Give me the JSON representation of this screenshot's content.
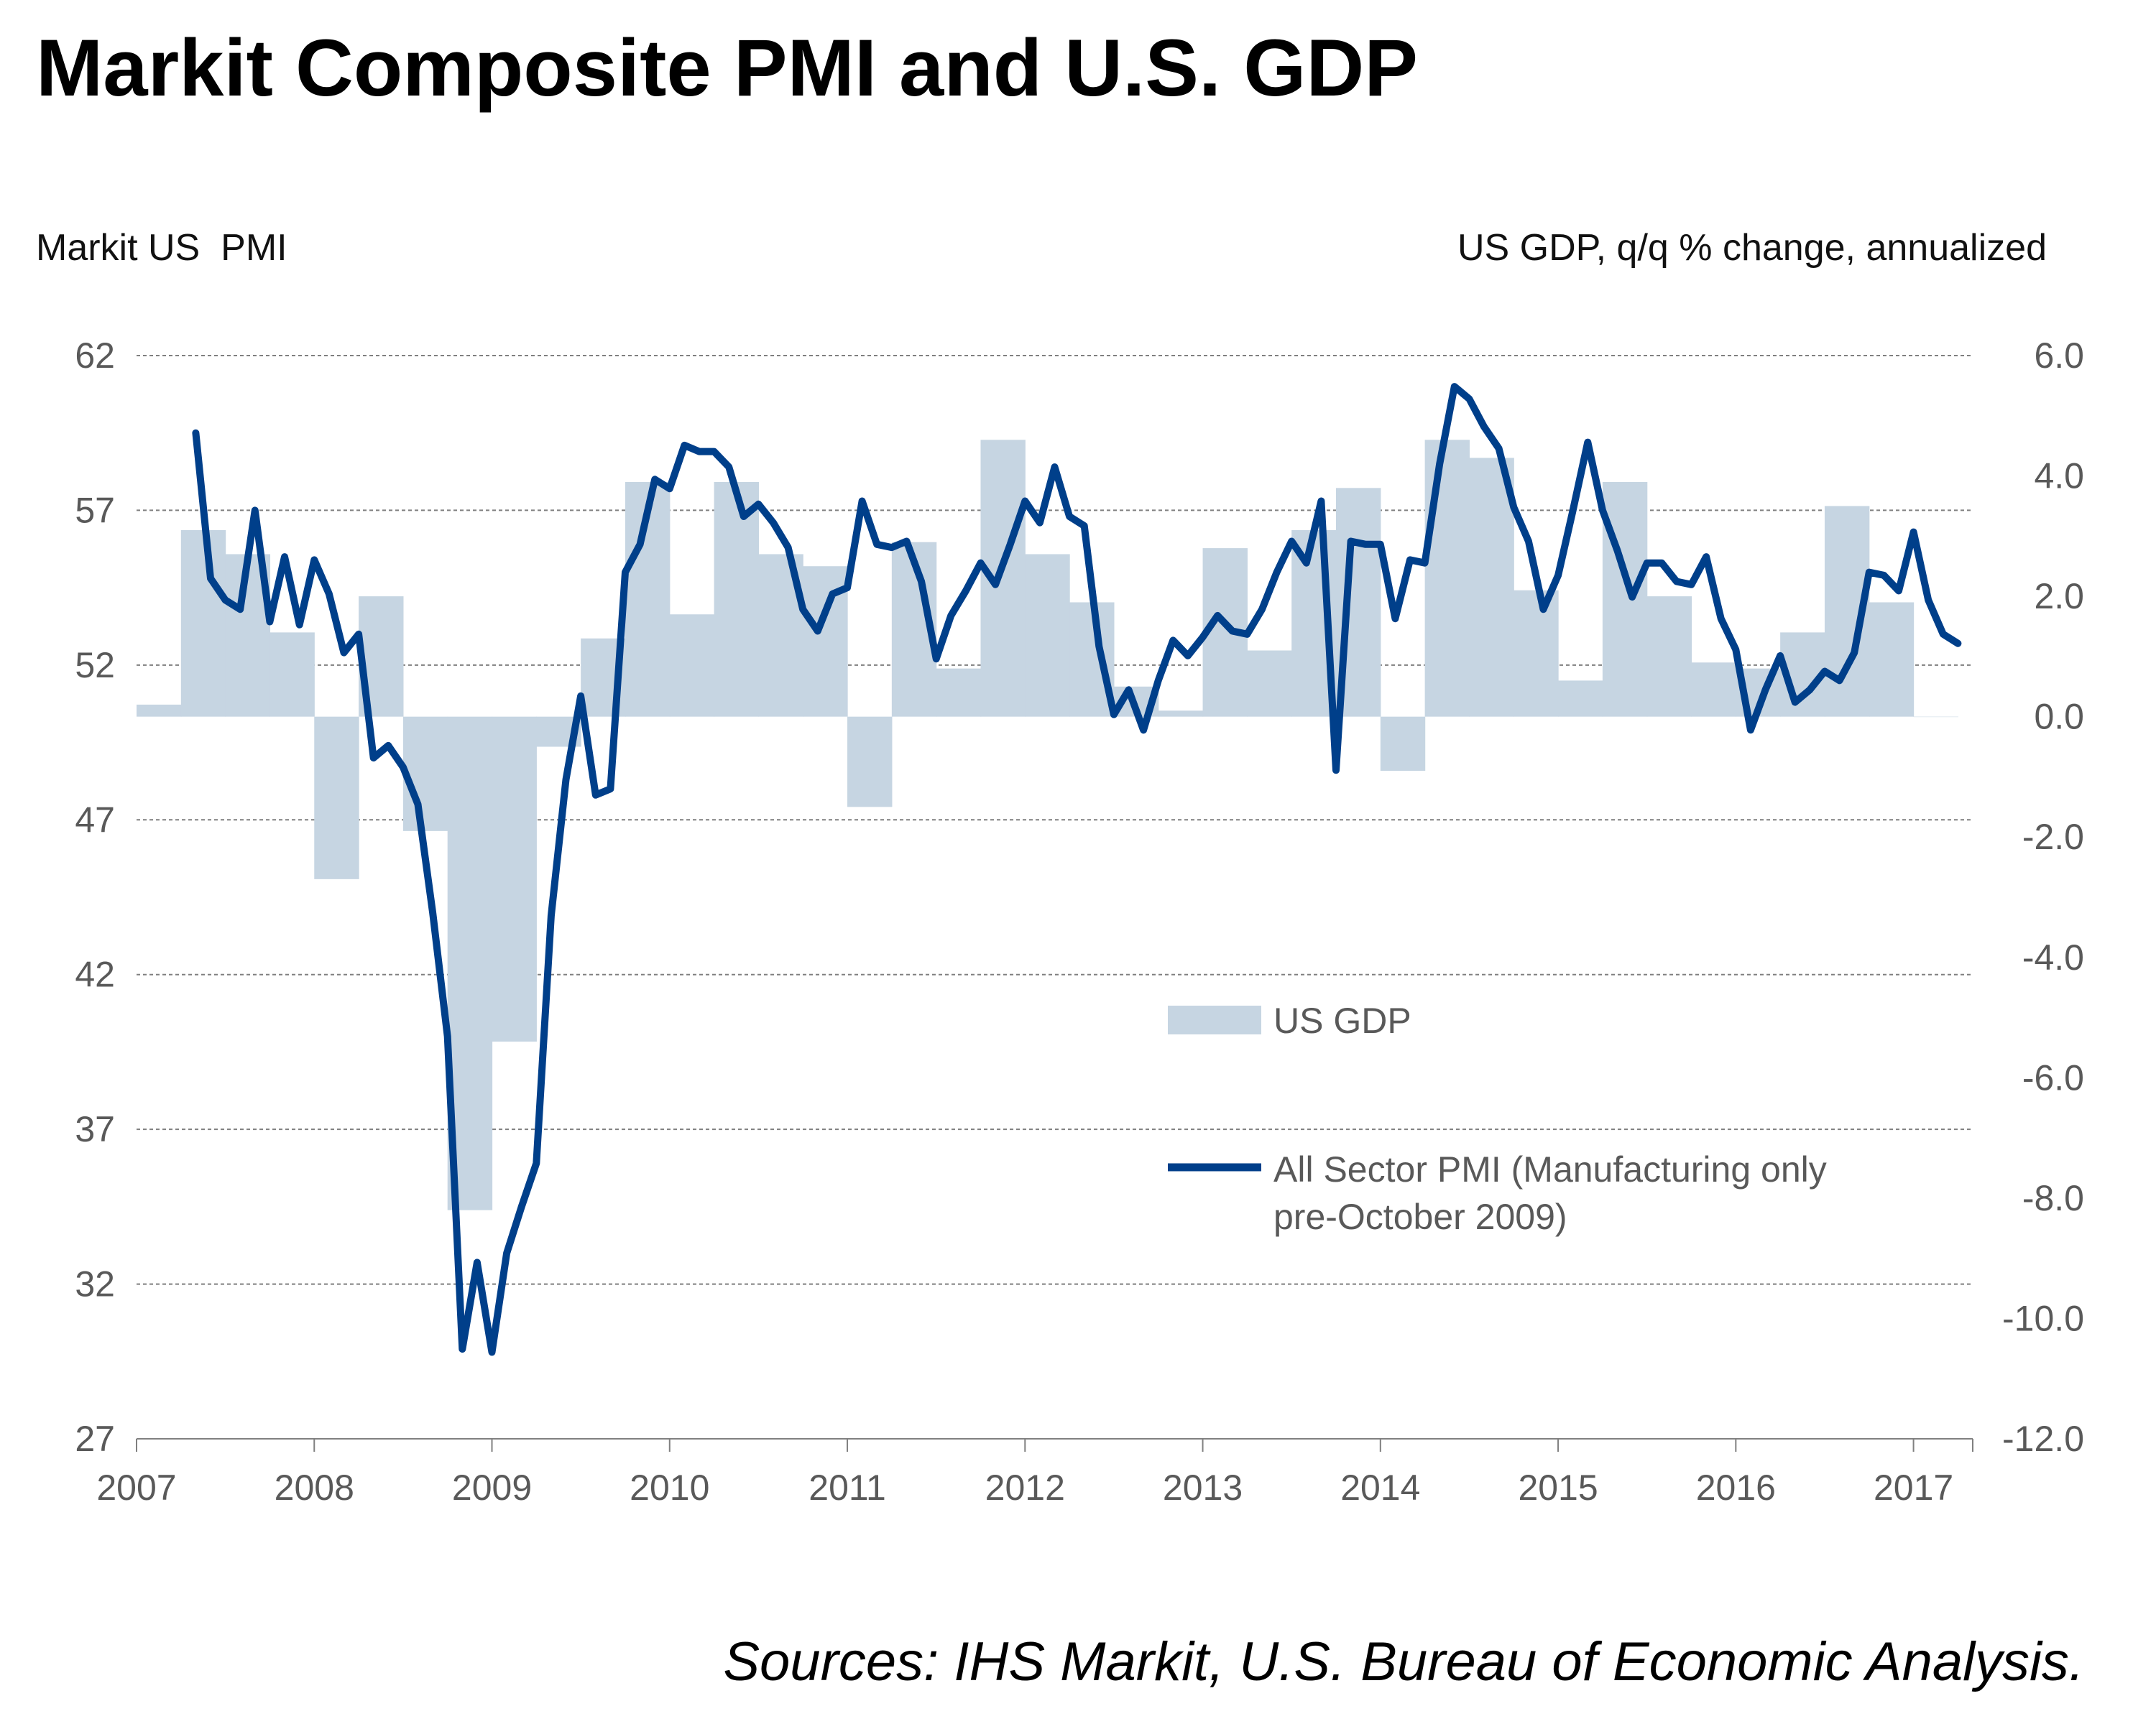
{
  "title": "Markit Composite PMI and U.S. GDP",
  "left_axis_title": "Markit US  PMI",
  "right_axis_title": "US GDP, q/q % change, annualized",
  "source": "Sources:  IHS Markit, U.S. Bureau of Economic Analysis.",
  "colors": {
    "gdp_bar": "#c6d5e2",
    "pmi_line": "#003f8a",
    "grid": "#7f7f7f",
    "tick_text": "#595959"
  },
  "chart_data": {
    "type": "line",
    "x_range": [
      "2007-01",
      "2017-05"
    ],
    "x_ticks": [
      "2007",
      "2008",
      "2009",
      "2010",
      "2011",
      "2012",
      "2013",
      "2014",
      "2015",
      "2016",
      "2017"
    ],
    "y_left": {
      "label": "Markit US  PMI",
      "range": [
        27,
        62
      ],
      "ticks": [
        "62",
        "57",
        "52",
        "47",
        "42",
        "37",
        "32",
        "27"
      ]
    },
    "y_right": {
      "label": "US GDP, q/q % change, annualized",
      "range": [
        -12.0,
        6.0
      ],
      "ticks": [
        "6.0",
        "4.0",
        "2.0",
        "0.0",
        "-2.0",
        "-4.0",
        "-6.0",
        "-8.0",
        "-10.0",
        "-12.0"
      ]
    },
    "grid": "horizontal dashed",
    "legend_position": "center-right",
    "series": [
      {
        "name": "US GDP",
        "type": "bar",
        "axis": "right",
        "quarters": [
          "2007-Q1",
          "2007-Q2",
          "2007-Q3",
          "2007-Q4",
          "2008-Q1",
          "2008-Q2",
          "2008-Q3",
          "2008-Q4",
          "2009-Q1",
          "2009-Q2",
          "2009-Q3",
          "2009-Q4",
          "2010-Q1",
          "2010-Q2",
          "2010-Q3",
          "2010-Q4",
          "2011-Q1",
          "2011-Q2",
          "2011-Q3",
          "2011-Q4",
          "2012-Q1",
          "2012-Q2",
          "2012-Q3",
          "2012-Q4",
          "2013-Q1",
          "2013-Q2",
          "2013-Q3",
          "2013-Q4",
          "2014-Q1",
          "2014-Q2",
          "2014-Q3",
          "2014-Q4",
          "2015-Q1",
          "2015-Q2",
          "2015-Q3",
          "2015-Q4",
          "2016-Q1",
          "2016-Q2",
          "2016-Q3",
          "2016-Q4",
          "2017-Q1"
        ],
        "values": [
          0.2,
          3.1,
          2.7,
          1.4,
          -2.7,
          2.0,
          -1.9,
          -8.2,
          -5.4,
          -0.5,
          1.3,
          3.9,
          1.7,
          3.9,
          2.7,
          2.5,
          -1.5,
          2.9,
          0.8,
          4.6,
          2.7,
          1.9,
          0.5,
          0.1,
          2.8,
          1.1,
          3.1,
          3.8,
          -0.9,
          4.6,
          4.3,
          2.1,
          0.6,
          3.9,
          2.0,
          0.9,
          0.8,
          1.4,
          3.5,
          1.9,
          0.0
        ]
      },
      {
        "name": "All Sector PMI (Manufacturing only pre-October 2009)",
        "type": "line",
        "axis": "left",
        "start": "2007-05",
        "values": [
          59.5,
          54.8,
          54.1,
          53.8,
          57.0,
          53.4,
          55.5,
          53.3,
          55.4,
          54.3,
          52.4,
          53.0,
          49.0,
          49.4,
          48.7,
          47.5,
          44.0,
          40.0,
          29.9,
          32.7,
          29.8,
          33.0,
          34.5,
          35.9,
          43.9,
          48.3,
          51.0,
          47.8,
          48.0,
          55.0,
          55.9,
          58.0,
          57.7,
          59.1,
          58.9,
          58.9,
          58.4,
          56.8,
          57.2,
          56.6,
          55.8,
          53.8,
          53.1,
          54.3,
          54.5,
          57.3,
          55.9,
          55.8,
          56.0,
          54.7,
          52.2,
          53.6,
          54.4,
          55.3,
          54.6,
          55.9,
          57.3,
          56.6,
          58.4,
          56.8,
          56.5,
          52.6,
          50.4,
          51.2,
          49.9,
          51.5,
          52.8,
          52.3,
          52.9,
          53.6,
          53.1,
          53.0,
          53.8,
          55.0,
          56.0,
          55.3,
          57.3,
          48.6,
          56.0,
          55.9,
          55.9,
          53.5,
          55.4,
          55.3,
          58.5,
          61.0,
          60.6,
          59.7,
          59.0,
          57.1,
          56.0,
          53.8,
          54.9,
          57.0,
          59.2,
          57.0,
          55.7,
          54.2,
          55.3,
          55.3,
          54.7,
          54.6,
          55.5,
          53.5,
          52.5,
          49.9,
          51.2,
          52.3,
          50.8,
          51.2,
          51.8,
          51.5,
          52.4,
          55.0,
          54.9,
          54.4,
          56.3,
          54.1,
          53.0,
          52.7
        ]
      }
    ]
  }
}
